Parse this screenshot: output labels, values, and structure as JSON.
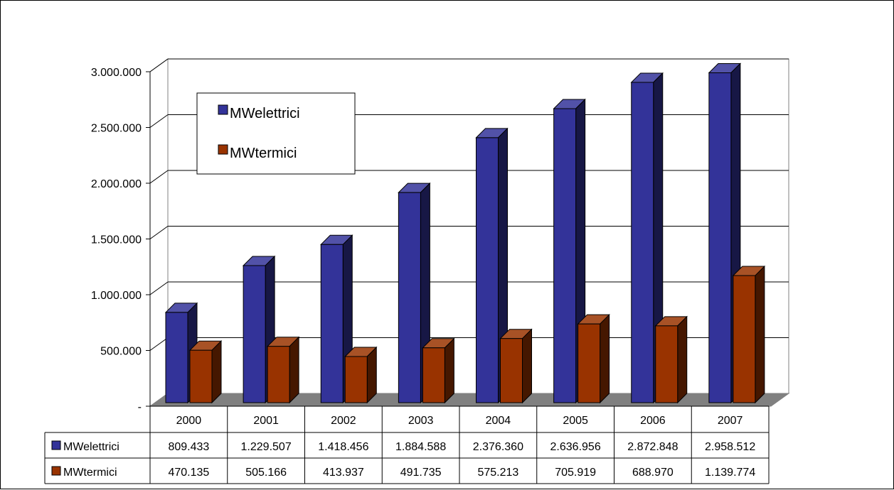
{
  "chart_data": {
    "type": "bar",
    "categories": [
      "2000",
      "2001",
      "2002",
      "2003",
      "2004",
      "2005",
      "2006",
      "2007"
    ],
    "series": [
      {
        "name": "MWelettrici",
        "color": "#333399",
        "values": [
          809433,
          1229507,
          1418456,
          1884588,
          2376360,
          2636956,
          2872848,
          2958512
        ],
        "labels": [
          "809.433",
          "1.229.507",
          "1.418.456",
          "1.884.588",
          "2.376.360",
          "2.636.956",
          "2.872.848",
          "2.958.512"
        ]
      },
      {
        "name": "MWtermici",
        "color": "#993300",
        "values": [
          470135,
          505166,
          413937,
          491735,
          575213,
          705919,
          688970,
          1139774
        ],
        "labels": [
          "470.135",
          "505.166",
          "413.937",
          "491.735",
          "575.213",
          "705.919",
          "688.970",
          "1.139.774"
        ]
      }
    ],
    "yticks": [
      0,
      500000,
      1000000,
      1500000,
      2000000,
      2500000,
      3000000
    ],
    "ytick_labels": [
      "-",
      "500.000",
      "1.000.000",
      "1.500.000",
      "2.000.000",
      "2.500.000",
      "3.000.000"
    ],
    "ylim": [
      0,
      3000000
    ],
    "grid": true,
    "legend": "top-left",
    "data_table": true,
    "floor_color": "#808080",
    "title": "",
    "xlabel": "",
    "ylabel": ""
  }
}
